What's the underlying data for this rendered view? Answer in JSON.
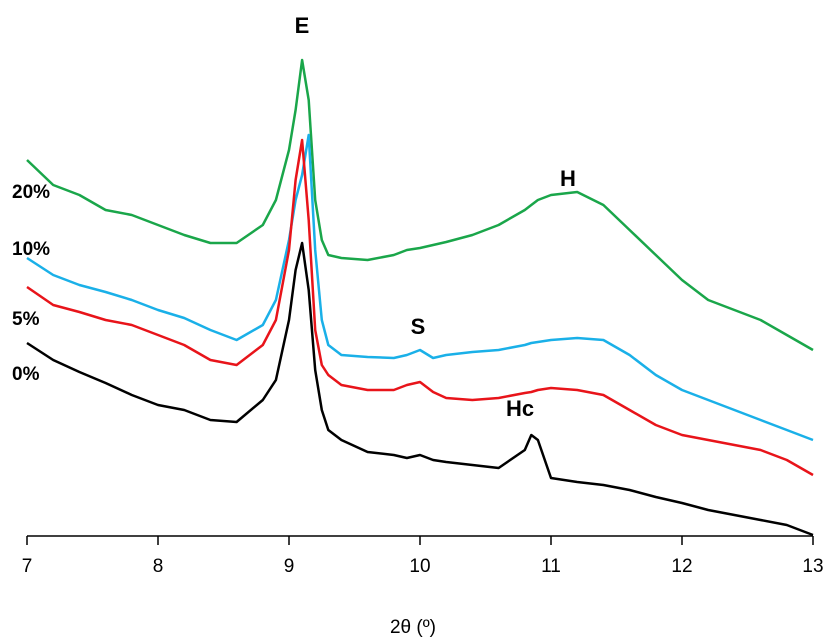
{
  "chart_data": {
    "type": "line",
    "x_label": "2θ (º)",
    "x": [
      7.0,
      7.2,
      7.4,
      7.6,
      7.8,
      8.0,
      8.2,
      8.4,
      8.6,
      8.8,
      8.9,
      9.0,
      9.05,
      9.1,
      9.15,
      9.2,
      9.25,
      9.3,
      9.4,
      9.6,
      9.8,
      9.9,
      10.0,
      10.1,
      10.2,
      10.4,
      10.6,
      10.8,
      10.85,
      10.9,
      11.0,
      11.2,
      11.4,
      11.6,
      11.8,
      12.0,
      12.2,
      12.4,
      12.6,
      12.8,
      13.0
    ],
    "series": [
      {
        "name": "20%",
        "color": "#1aa64a",
        "values": [
          75.2,
          70.2,
          68.2,
          65.2,
          64.2,
          62.2,
          60.2,
          58.6,
          58.6,
          62.2,
          67.2,
          77.2,
          85.2,
          95.2,
          87.2,
          67.2,
          59.2,
          56.2,
          55.6,
          55.2,
          56.2,
          57.2,
          57.6,
          58.2,
          58.8,
          60.2,
          62.2,
          65.2,
          66.2,
          67.2,
          68.2,
          68.8,
          66.2,
          61.2,
          56.2,
          51.2,
          47.2,
          45.2,
          43.2,
          40.2,
          37.2
        ]
      },
      {
        "name": "10%",
        "color": "#1ab0e8",
        "values": [
          55.6,
          52.2,
          50.2,
          48.8,
          47.2,
          45.2,
          43.6,
          41.2,
          39.2,
          42.2,
          47.2,
          59.2,
          67.2,
          72.2,
          80.2,
          57.2,
          43.2,
          38.2,
          36.2,
          35.8,
          35.6,
          36.2,
          37.2,
          35.6,
          36.2,
          36.8,
          37.2,
          38.2,
          38.6,
          38.8,
          39.2,
          39.6,
          39.2,
          36.2,
          32.2,
          29.2,
          27.2,
          25.2,
          23.2,
          21.2,
          19.2
        ]
      },
      {
        "name": "5%",
        "color": "#e8141a",
        "values": [
          49.8,
          46.2,
          44.8,
          43.2,
          42.2,
          40.2,
          38.2,
          35.2,
          34.2,
          38.2,
          43.2,
          57.2,
          71.2,
          79.2,
          63.2,
          41.2,
          34.2,
          32.2,
          30.2,
          29.2,
          29.2,
          30.2,
          30.8,
          28.8,
          27.6,
          27.2,
          27.6,
          28.6,
          28.8,
          29.2,
          29.6,
          29.2,
          28.2,
          25.2,
          22.2,
          20.2,
          19.2,
          18.2,
          17.2,
          15.2,
          12.2
        ]
      },
      {
        "name": "0%",
        "color": "#000000",
        "values": [
          38.6,
          35.2,
          32.8,
          30.6,
          28.2,
          26.2,
          25.2,
          23.2,
          22.8,
          27.2,
          31.2,
          43.2,
          53.2,
          58.6,
          49.2,
          33.2,
          25.2,
          21.2,
          19.2,
          16.8,
          16.2,
          15.6,
          16.2,
          15.2,
          14.8,
          14.2,
          13.6,
          17.2,
          20.2,
          19.2,
          11.6,
          10.8,
          10.2,
          9.2,
          7.8,
          6.6,
          5.2,
          4.2,
          3.2,
          2.2,
          0.2
        ]
      }
    ],
    "annotations": [
      "E",
      "H",
      "S",
      "Hc"
    ],
    "xlim": [
      7,
      13
    ],
    "xticks": [
      7,
      8,
      9,
      10,
      11,
      12,
      13
    ],
    "ylim": [
      0,
      100
    ]
  }
}
